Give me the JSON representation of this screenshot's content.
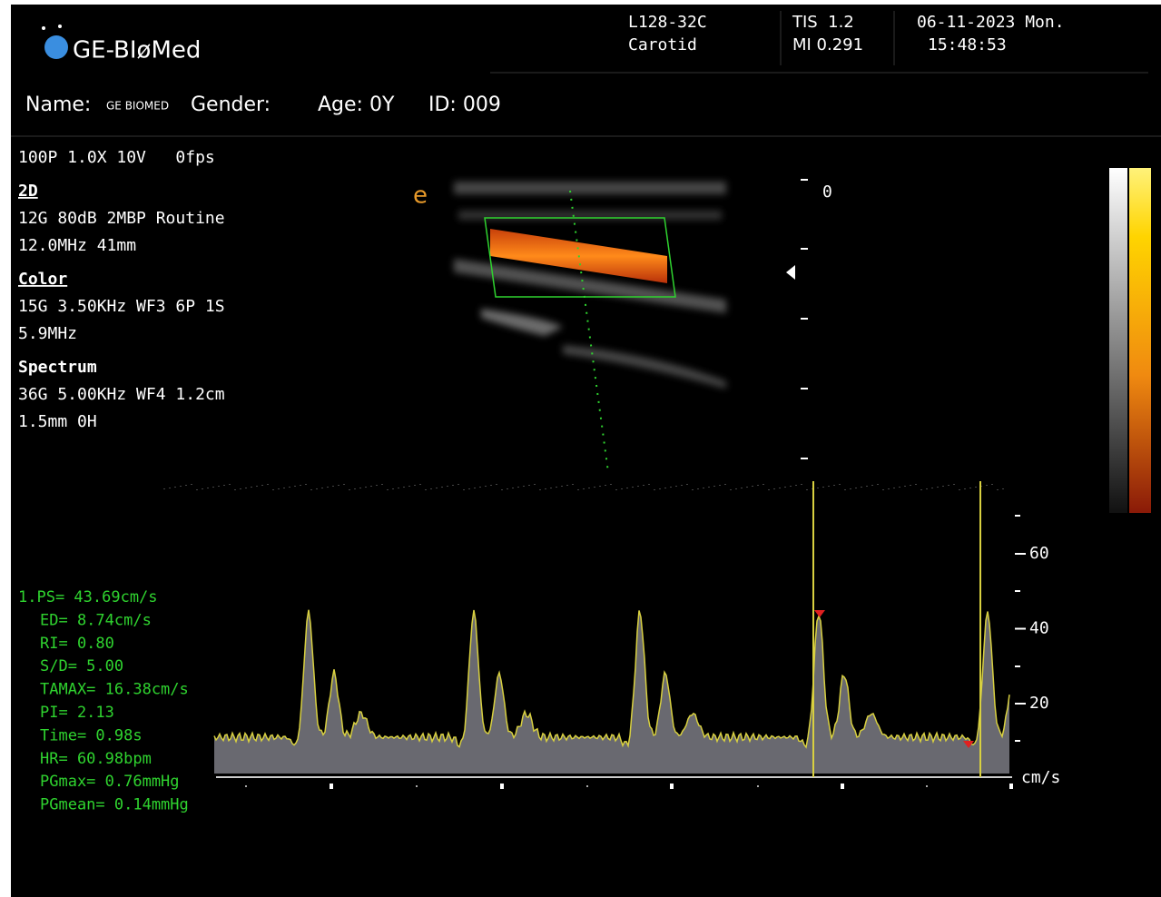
{
  "header": {
    "logo": "GE-BIøMed",
    "probe": "L128-32C",
    "preset": "Carotid",
    "tis": "TIS  1.2",
    "mi": "MI 0.291",
    "date": "06-11-2023 Mon.",
    "time": "15:48:53"
  },
  "patient": {
    "name_label": "Name:",
    "name": "GE BIOMED",
    "gender_label": "Gender:",
    "age": "Age: 0Y",
    "id": "ID: 009"
  },
  "params": {
    "general": "100P 1.0X 10V   0fps",
    "sections": [
      {
        "title": "2D",
        "lines": [
          "12G 80dB 2MBP Routine",
          "12.0MHz 41mm"
        ]
      },
      {
        "title": "Color",
        "lines": [
          "15G 3.50KHz WF3 6P 1S",
          "5.9MHz"
        ]
      },
      {
        "title": "Spectrum",
        "lines": [
          "36G 5.00KHz WF4 1.2cm",
          "1.5mm 0H"
        ]
      }
    ]
  },
  "depth_scale": {
    "top_label": "0"
  },
  "measurements": [
    "1.PS= 43.69cm/s",
    "ED= 8.74cm/s",
    "RI= 0.80",
    "S/D= 5.00",
    "TAMAX= 16.38cm/s",
    "PI= 2.13",
    "Time= 0.98s",
    "HR= 60.98bpm",
    "PGmax= 0.76mmHg",
    "PGmean= 0.14mmHg"
  ],
  "spectrum_scale": {
    "labels": [
      "60",
      "40",
      "20"
    ],
    "unit": "cm/s"
  }
}
